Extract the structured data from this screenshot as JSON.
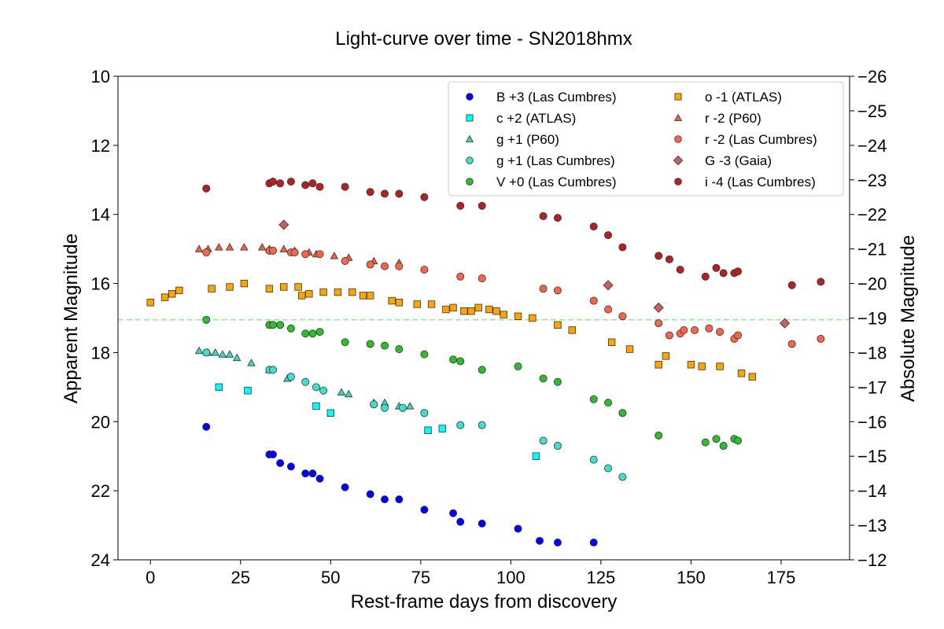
{
  "chart_data": {
    "type": "scatter",
    "title": "Light-curve over time - SN2018hmx",
    "xlabel": "Rest-frame days from discovery",
    "ylabel": "Apparent Magnitude",
    "ylabel_right": "Absolute Magnitude",
    "xlim": [
      -9,
      194
    ],
    "ylim": [
      24,
      10
    ],
    "ylim_right": [
      -12,
      -26
    ],
    "x_ticks": [
      0,
      25,
      50,
      75,
      100,
      125,
      150,
      175
    ],
    "y_ticks": [
      10,
      12,
      14,
      16,
      18,
      20,
      22,
      24
    ],
    "y_ticks_right": [
      -26,
      -25,
      -24,
      -23,
      -22,
      -21,
      -20,
      -19,
      -18,
      -17,
      -16,
      -15,
      -14,
      -13,
      -12
    ],
    "grid": false,
    "legend_position": "top-right",
    "reference_line": {
      "y": 17.05,
      "color": "#90ee90",
      "style": "dashed"
    },
    "series": [
      {
        "name": "B +3 (Las Cumbres)",
        "marker": "circle",
        "color": "#0000ff",
        "x": [
          15.5,
          33,
          34,
          36,
          39,
          43,
          45,
          47,
          54,
          61,
          65,
          69,
          76,
          84,
          86,
          92,
          102,
          108,
          113,
          123
        ],
        "y": [
          20.15,
          20.95,
          20.95,
          21.2,
          21.3,
          21.5,
          21.5,
          21.65,
          21.9,
          22.1,
          22.25,
          22.25,
          22.55,
          22.65,
          22.9,
          22.95,
          23.1,
          23.45,
          23.5,
          23.5
        ]
      },
      {
        "name": "c +2 (ATLAS)",
        "marker": "square",
        "color": "#00ffff",
        "x": [
          19,
          27,
          46,
          50,
          77,
          81,
          107
        ],
        "y": [
          19.0,
          19.1,
          19.55,
          19.75,
          20.25,
          20.2,
          21.0
        ]
      },
      {
        "name": "g +1 (P60)",
        "marker": "triangle",
        "color": "#3cd8b8",
        "x": [
          13.5,
          16,
          18,
          20,
          22,
          24,
          28,
          33,
          38,
          53,
          55,
          62,
          65,
          69,
          72
        ],
        "y": [
          17.95,
          18.0,
          18.0,
          18.05,
          18.05,
          18.15,
          18.3,
          18.5,
          18.75,
          19.15,
          19.2,
          19.45,
          19.45,
          19.55,
          19.55
        ]
      },
      {
        "name": "g +1 (Las Cumbres)",
        "marker": "circle",
        "color": "#40e0d0",
        "x": [
          15.5,
          33,
          34,
          39,
          43,
          46,
          48,
          62,
          65,
          70,
          76,
          86,
          92,
          109,
          113,
          123,
          127,
          131
        ],
        "y": [
          18.0,
          18.5,
          18.5,
          18.7,
          18.85,
          19.0,
          19.1,
          19.5,
          19.6,
          19.6,
          19.75,
          20.1,
          20.1,
          20.55,
          20.7,
          21.1,
          21.35,
          21.6
        ]
      },
      {
        "name": "V +0 (Las Cumbres)",
        "marker": "circle",
        "color": "#2ebd2e",
        "x": [
          15.5,
          33,
          34,
          36,
          39,
          43,
          45,
          47,
          54,
          61,
          65,
          69,
          76,
          84,
          86,
          92,
          102,
          109,
          113,
          123,
          127,
          131,
          141,
          154,
          157,
          159,
          162,
          163
        ],
        "y": [
          17.05,
          17.2,
          17.2,
          17.2,
          17.3,
          17.45,
          17.45,
          17.4,
          17.7,
          17.75,
          17.8,
          17.9,
          18.05,
          18.2,
          18.25,
          18.5,
          18.4,
          18.75,
          18.85,
          19.35,
          19.45,
          19.75,
          20.4,
          20.6,
          20.5,
          20.7,
          20.5,
          20.55
        ]
      },
      {
        "name": "o -1 (ATLAS)",
        "marker": "square",
        "color": "#ffa500",
        "x": [
          0,
          4,
          6,
          8,
          17,
          22,
          26,
          33,
          37,
          41,
          42,
          44,
          48,
          52,
          56,
          59,
          61,
          67,
          69,
          74,
          78,
          82,
          84,
          87,
          89,
          91,
          94,
          96,
          98,
          102,
          106,
          113,
          117,
          128,
          133,
          141,
          143,
          150,
          153,
          158,
          164,
          167
        ],
        "y": [
          16.55,
          16.4,
          16.3,
          16.2,
          16.15,
          16.1,
          16.0,
          16.15,
          16.1,
          16.1,
          16.35,
          16.3,
          16.25,
          16.25,
          16.25,
          16.35,
          16.35,
          16.5,
          16.55,
          16.6,
          16.6,
          16.75,
          16.7,
          16.8,
          16.8,
          16.7,
          16.75,
          16.8,
          16.9,
          16.95,
          17.0,
          17.2,
          17.35,
          17.7,
          17.9,
          18.35,
          18.1,
          18.35,
          18.4,
          18.4,
          18.6,
          18.7
        ]
      },
      {
        "name": "r -2 (P60)",
        "marker": "triangle",
        "color": "#f4603c",
        "x": [
          13.5,
          16,
          19,
          22,
          26,
          31,
          33,
          37,
          40,
          44,
          46,
          51,
          55,
          62,
          69
        ],
        "y": [
          15.0,
          15.0,
          14.95,
          14.95,
          14.95,
          14.95,
          15.0,
          15.0,
          15.05,
          15.1,
          15.15,
          15.2,
          15.25,
          15.35,
          15.4
        ]
      },
      {
        "name": "r -2 (Las Cumbres)",
        "marker": "circle",
        "color": "#fa6448",
        "x": [
          15.5,
          33,
          34,
          39,
          40,
          43,
          47,
          54,
          61,
          65,
          69,
          76,
          86,
          92,
          109,
          113,
          123,
          127,
          131,
          141,
          144,
          147,
          148,
          151,
          155,
          158,
          162,
          163,
          178,
          186
        ],
        "y": [
          15.1,
          15.05,
          15.05,
          15.1,
          15.1,
          15.15,
          15.15,
          15.35,
          15.45,
          15.5,
          15.5,
          15.6,
          15.8,
          15.85,
          16.15,
          16.2,
          16.5,
          16.75,
          16.95,
          17.15,
          17.5,
          17.45,
          17.35,
          17.35,
          17.3,
          17.4,
          17.6,
          17.5,
          17.75,
          17.6
        ]
      },
      {
        "name": "G -3 (Gaia)",
        "marker": "diamond",
        "color": "#cd5c5c",
        "x": [
          37,
          127,
          141,
          176
        ],
        "y": [
          14.3,
          16.05,
          16.7,
          17.15
        ]
      },
      {
        "name": "i -4 (Las Cumbres)",
        "marker": "circle",
        "color": "#b22222",
        "x": [
          15.5,
          33,
          34,
          36,
          39,
          43,
          45,
          47,
          54,
          61,
          65,
          69,
          76,
          86,
          92,
          109,
          113,
          123,
          127,
          131,
          141,
          144,
          147,
          154,
          157,
          159,
          162,
          163,
          178,
          186
        ],
        "y": [
          13.25,
          13.1,
          13.05,
          13.1,
          13.05,
          13.15,
          13.1,
          13.2,
          13.2,
          13.35,
          13.4,
          13.4,
          13.5,
          13.75,
          13.75,
          14.05,
          14.1,
          14.35,
          14.6,
          14.95,
          15.2,
          15.3,
          15.6,
          15.8,
          15.55,
          15.7,
          15.7,
          15.65,
          16.05,
          15.95
        ]
      }
    ]
  }
}
